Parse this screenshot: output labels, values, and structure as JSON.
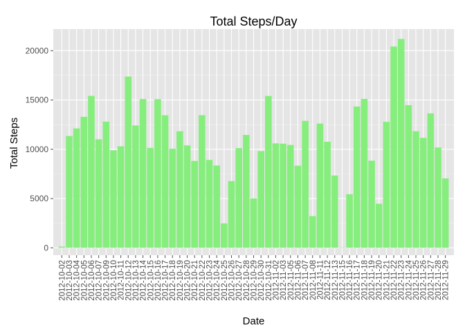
{
  "chart_data": {
    "type": "bar",
    "title": "Total Steps/Day",
    "xlabel": "Date",
    "ylabel": "Total Steps",
    "ylim": [
      -750,
      22200
    ],
    "yticks": [
      0,
      5000,
      10000,
      15000,
      20000
    ],
    "grid": true,
    "legend": "none",
    "colors": {
      "panel": "#e5e5e5",
      "grid_major": "#ffffff",
      "grid_minor": "#f2f2f2",
      "bar": "#86ee7d",
      "tick": "#4d4d4d"
    },
    "categories": [
      "2012-10-02",
      "2012-10-03",
      "2012-10-04",
      "2012-10-05",
      "2012-10-06",
      "2012-10-07",
      "2012-10-09",
      "2012-10-10",
      "2012-10-11",
      "2012-10-12",
      "2012-10-13",
      "2012-10-14",
      "2012-10-15",
      "2012-10-16",
      "2012-10-17",
      "2012-10-18",
      "2012-10-19",
      "2012-10-20",
      "2012-10-21",
      "2012-10-22",
      "2012-10-23",
      "2012-10-24",
      "2012-10-25",
      "2012-10-26",
      "2012-10-27",
      "2012-10-28",
      "2012-10-29",
      "2012-10-30",
      "2012-10-31",
      "2012-11-02",
      "2012-11-03",
      "2012-11-05",
      "2012-11-06",
      "2012-11-07",
      "2012-11-08",
      "2012-11-11",
      "2012-11-12",
      "2012-11-13",
      "2012-11-15",
      "2012-11-16",
      "2012-11-17",
      "2012-11-18",
      "2012-11-19",
      "2012-11-20",
      "2012-11-21",
      "2012-11-22",
      "2012-11-23",
      "2012-11-24",
      "2012-11-25",
      "2012-11-26",
      "2012-11-27",
      "2012-11-28",
      "2012-11-29"
    ],
    "values": [
      126,
      11352,
      12116,
      13294,
      15420,
      11015,
      12811,
      9900,
      10304,
      17382,
      12426,
      15098,
      10139,
      15084,
      13452,
      10056,
      11829,
      10395,
      8821,
      13460,
      8918,
      8355,
      2492,
      6778,
      10119,
      11458,
      5018,
      9819,
      15414,
      10600,
      10571,
      10439,
      8334,
      12883,
      3219,
      12608,
      10765,
      7336,
      41,
      5441,
      14339,
      15110,
      8841,
      4472,
      12787,
      20427,
      21194,
      14478,
      11834,
      11162,
      13646,
      10183,
      7047
    ]
  }
}
